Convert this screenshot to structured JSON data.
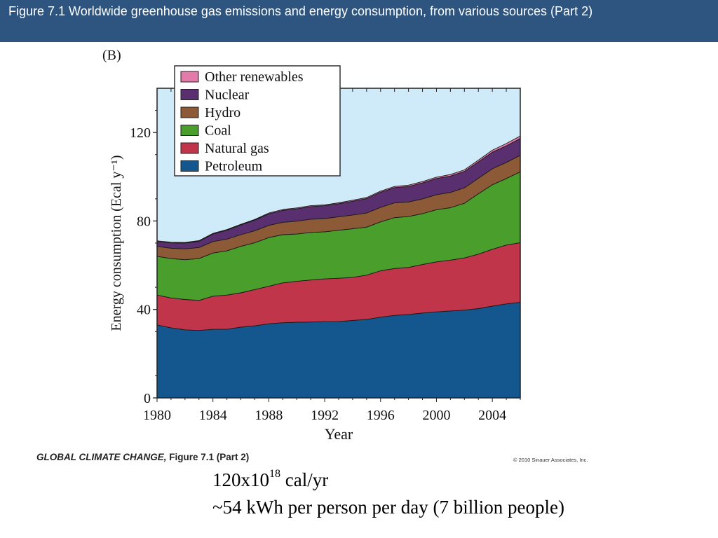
{
  "header": {
    "title": "Figure 7.1  Worldwide greenhouse gas emissions and energy consumption, from various sources (Part 2)"
  },
  "panel_label": "(B)",
  "credits": {
    "book_title": "GLOBAL CLIMATE CHANGE,",
    "figure_ref": "Figure 7.1 (Part 2)",
    "copyright": "© 2010 Sinauer Associates, Inc."
  },
  "notes": {
    "line1_base": "120x10",
    "line1_exp": "18",
    "line1_unit": " cal/yr",
    "line2": "~54 kWh per person per day (7 billion people)"
  },
  "chart_data": {
    "type": "area",
    "stacked": true,
    "xlabel": "Year",
    "ylabel": "Energy consumption (Ecal y⁻¹)",
    "xlim": [
      1980,
      2006
    ],
    "ylim": [
      0,
      140
    ],
    "xticks": [
      1980,
      1984,
      1988,
      1992,
      1996,
      2000,
      2004
    ],
    "yticks": [
      0,
      40,
      80,
      120
    ],
    "legend_position": "top-left",
    "x": [
      1980,
      1981,
      1982,
      1983,
      1984,
      1985,
      1986,
      1987,
      1988,
      1989,
      1990,
      1991,
      1992,
      1993,
      1994,
      1995,
      1996,
      1997,
      1998,
      1999,
      2000,
      2001,
      2002,
      2003,
      2004,
      2005,
      2006
    ],
    "series": [
      {
        "name": "Petroleum",
        "color": "#14578f",
        "values": [
          33,
          31.7,
          30.8,
          30.5,
          31,
          31,
          32,
          32.6,
          33.5,
          34,
          34.2,
          34.3,
          34.5,
          34.5,
          35,
          35.5,
          36.5,
          37.3,
          37.7,
          38.4,
          38.9,
          39.3,
          39.7,
          40.4,
          41.5,
          42.5,
          43.2
        ]
      },
      {
        "name": "Natural gas",
        "color": "#c0354a",
        "values": [
          13.5,
          13.5,
          13.7,
          13.6,
          15,
          15.5,
          15.5,
          16.4,
          17,
          18,
          18.5,
          19,
          19.3,
          19.6,
          19.5,
          20,
          21,
          21.2,
          21.3,
          21.9,
          22.6,
          23,
          23.6,
          24.6,
          25.7,
          26.6,
          27
        ]
      },
      {
        "name": "Coal",
        "color": "#4a9e2c",
        "values": [
          17.5,
          17.8,
          18,
          18.9,
          19.5,
          20,
          21,
          21.2,
          22,
          21.8,
          21.4,
          21.5,
          21.3,
          21.7,
          22,
          21.7,
          22.1,
          23,
          23,
          23,
          23.6,
          23.7,
          24.7,
          27.3,
          29.2,
          30.1,
          32
        ]
      },
      {
        "name": "Hydro",
        "color": "#8c5a36",
        "values": [
          4.5,
          4.7,
          4.9,
          5,
          5.2,
          5.3,
          5.3,
          5.4,
          5.5,
          5.6,
          5.8,
          6,
          6,
          6.1,
          6.2,
          6.4,
          6.6,
          6.7,
          6.6,
          6.7,
          6.8,
          6.9,
          7,
          7,
          7.2,
          7.3,
          7.5
        ]
      },
      {
        "name": "Nuclear",
        "color": "#5a2f6f",
        "values": [
          2.2,
          2.4,
          2.6,
          2.8,
          3.4,
          4,
          4.4,
          4.8,
          5.2,
          5.4,
          5.6,
          5.7,
          5.8,
          5.9,
          6.2,
          6.5,
          6.8,
          6.9,
          7,
          7.2,
          7.3,
          7.4,
          7.4,
          7.4,
          7.5,
          7.5,
          7.6
        ]
      },
      {
        "name": "Other renewables",
        "color": "#e27aaa",
        "values": [
          0.3,
          0.3,
          0.3,
          0.3,
          0.3,
          0.3,
          0.3,
          0.3,
          0.4,
          0.4,
          0.4,
          0.4,
          0.4,
          0.4,
          0.5,
          0.5,
          0.5,
          0.5,
          0.6,
          0.6,
          0.6,
          0.7,
          0.7,
          0.8,
          0.9,
          1.0,
          1.1
        ]
      }
    ]
  }
}
